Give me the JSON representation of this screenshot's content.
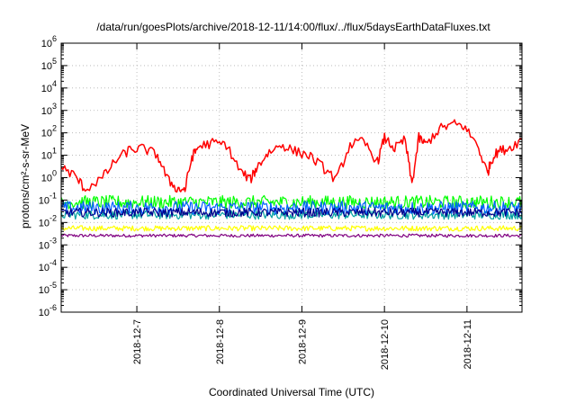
{
  "chart_data": {
    "type": "line",
    "title": "/data/run/goesPlots/archive/2018-12-11/14:00/flux/../flux/5daysEarthDataFluxes.txt",
    "xlabel": "Coordinated Universal Time (UTC)",
    "ylabel": "protons/cm²-s-sr-MeV",
    "y_scale": "log",
    "ylim_exponent": [
      -6,
      6
    ],
    "y_tick_exponents": [
      -6,
      -5,
      -4,
      -3,
      -2,
      -1,
      0,
      1,
      2,
      3,
      4,
      5,
      6
    ],
    "x_range_days": [
      "2018-12-06 02:00",
      "2018-12-11 16:00"
    ],
    "x_ticks": [
      "2018-12-7",
      "2018-12-8",
      "2018-12-9",
      "2018-12-10",
      "2018-12-11"
    ],
    "grid": true,
    "series": [
      {
        "color": "#ff0000",
        "x": [
          "2018-12-06 02:00",
          "2018-12-06 06:00",
          "2018-12-06 09:00",
          "2018-12-06 14:00",
          "2018-12-06 18:00",
          "2018-12-06 22:00",
          "2018-12-07 02:00",
          "2018-12-07 06:00",
          "2018-12-07 09:00",
          "2018-12-07 12:00",
          "2018-12-07 14:00",
          "2018-12-07 16:00",
          "2018-12-07 18:00",
          "2018-12-07 22:00",
          "2018-12-08 02:00",
          "2018-12-08 06:00",
          "2018-12-08 09:00",
          "2018-12-08 11:00",
          "2018-12-08 14:00",
          "2018-12-08 18:00",
          "2018-12-08 22:00",
          "2018-12-09 02:00",
          "2018-12-09 06:00",
          "2018-12-09 10:00",
          "2018-12-09 14:00",
          "2018-12-09 18:00",
          "2018-12-09 22:00",
          "2018-12-10 00:00",
          "2018-12-10 03:00",
          "2018-12-10 06:00",
          "2018-12-10 08:00",
          "2018-12-10 10:00",
          "2018-12-10 12:00",
          "2018-12-10 16:00",
          "2018-12-10 20:00",
          "2018-12-10 23:00",
          "2018-12-11 03:00",
          "2018-12-11 06:00",
          "2018-12-11 07:00",
          "2018-12-11 09:00",
          "2018-12-11 12:00",
          "2018-12-11 16:00"
        ],
        "values": [
          3,
          1.2,
          0.3,
          1,
          6,
          18,
          20,
          10,
          0.8,
          0.3,
          0.3,
          8,
          25,
          35,
          30,
          2,
          0.8,
          3,
          12,
          30,
          15,
          10,
          3,
          0.8,
          30,
          40,
          5,
          60,
          20,
          50,
          0.5,
          60,
          30,
          150,
          250,
          200,
          30,
          1.5,
          6,
          15,
          20,
          50
        ]
      },
      {
        "color": "#00ff00",
        "level": 0.08,
        "noise_decades": 0.3
      },
      {
        "color": "#0060ff",
        "level": 0.045,
        "noise_decades": 0.3
      },
      {
        "color": "#00a0a0",
        "level": 0.022,
        "noise_decades": 0.2
      },
      {
        "color": "#00008b",
        "level": 0.028,
        "noise_decades": 0.2
      },
      {
        "color": "#ffff00",
        "level": 0.0055,
        "noise_decades": 0.12
      },
      {
        "color": "#800080",
        "level": 0.0026,
        "noise_decades": 0.07
      }
    ]
  }
}
